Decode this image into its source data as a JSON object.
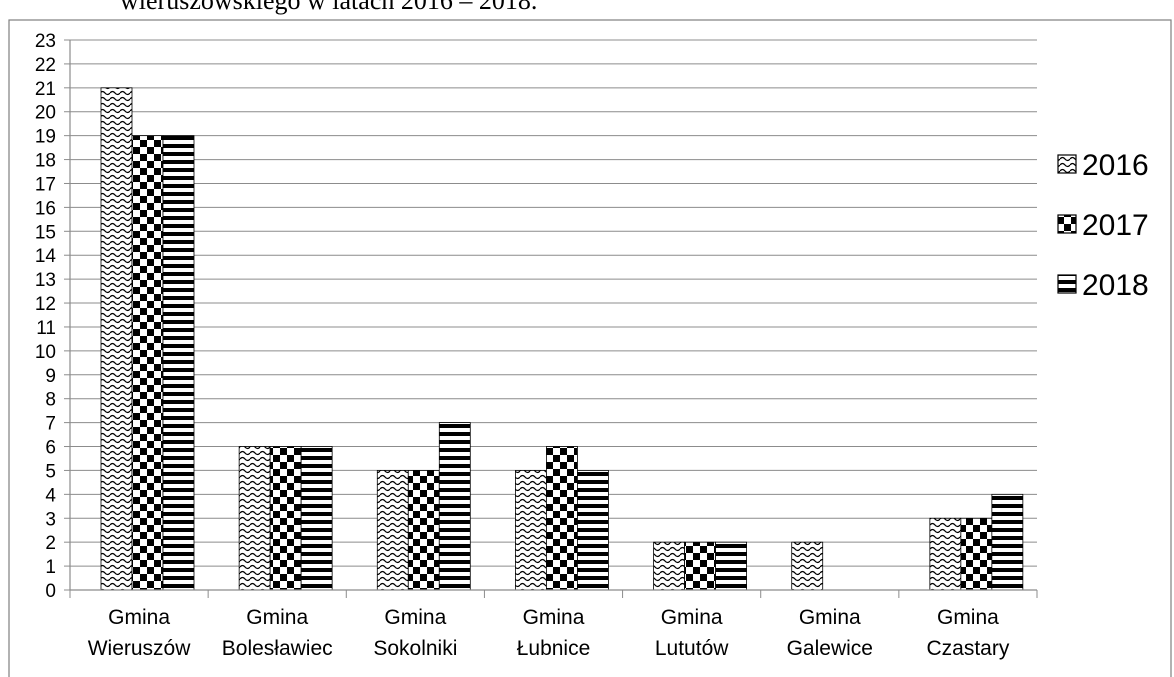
{
  "caption": "wieruszowskiego w latach 2016 – 2018.",
  "chart_data": {
    "type": "bar",
    "categories": [
      [
        "Gmina",
        "Wieruszów"
      ],
      [
        "Gmina",
        "Bolesławiec"
      ],
      [
        "Gmina",
        "Sokolniki"
      ],
      [
        "Gmina",
        "Łubnice"
      ],
      [
        "Gmina",
        "Lututów"
      ],
      [
        "Gmina",
        "Galewice"
      ],
      [
        "Gmina",
        "Czastary"
      ]
    ],
    "series": [
      {
        "name": "2016",
        "pattern": "wave",
        "values": [
          21,
          6,
          5,
          5,
          2,
          2,
          3
        ]
      },
      {
        "name": "2017",
        "pattern": "checker",
        "values": [
          19,
          6,
          5,
          6,
          2,
          0,
          3
        ]
      },
      {
        "name": "2018",
        "pattern": "stripes",
        "values": [
          19,
          6,
          7,
          5,
          2,
          0,
          4
        ]
      }
    ],
    "title": "",
    "xlabel": "",
    "ylabel": "",
    "ylim": [
      0,
      23
    ],
    "ytick_step": 1,
    "grid": true,
    "legend_position": "right",
    "colors": {
      "ink": "#000000",
      "grid": "#8c8c8c",
      "frame": "#7f7f7f"
    }
  }
}
